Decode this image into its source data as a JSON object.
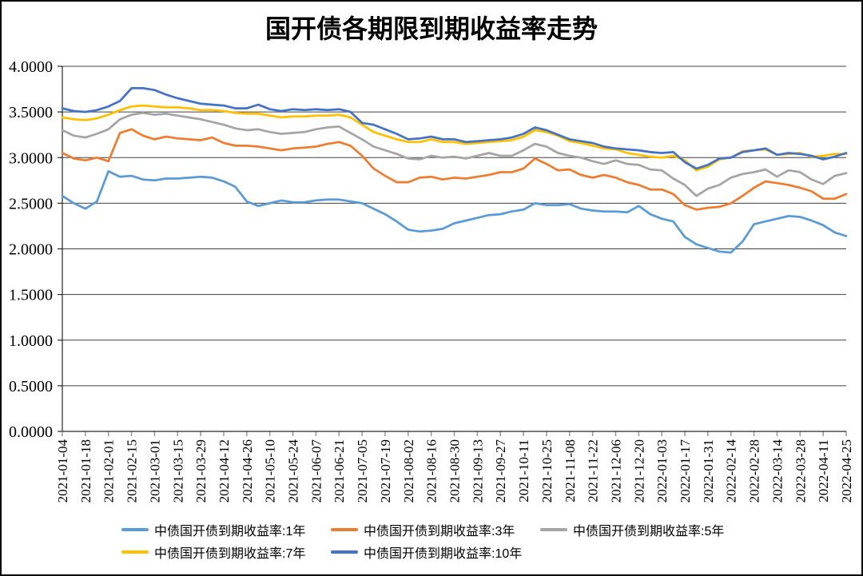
{
  "title": "国开债各期限到期收益率走势",
  "chart_data": {
    "type": "line",
    "title": "国开债各期限到期收益率走势",
    "xlabel": "",
    "ylabel": "",
    "ylim": [
      0,
      4
    ],
    "y_tick_step": 0.5,
    "y_tick_decimals": 4,
    "grid": "horizontal",
    "legend_position": "bottom",
    "axis_color": "#262626",
    "gridline_color": "#404040",
    "x_tick_mark_color": "#999999",
    "points_per_tick": 2,
    "x_tick_labels": [
      "2021-01-04",
      "2021-01-18",
      "2021-02-01",
      "2021-02-15",
      "2021-03-01",
      "2021-03-15",
      "2021-03-29",
      "2021-04-12",
      "2021-04-26",
      "2021-05-10",
      "2021-05-24",
      "2021-06-07",
      "2021-06-21",
      "2021-07-05",
      "2021-07-19",
      "2021-08-02",
      "2021-08-16",
      "2021-08-30",
      "2021-09-13",
      "2021-09-27",
      "2021-10-11",
      "2021-10-25",
      "2021-11-08",
      "2021-11-22",
      "2021-12-06",
      "2021-12-20",
      "2022-01-03",
      "2022-01-17",
      "2022-01-31",
      "2022-02-14",
      "2022-02-28",
      "2022-03-14",
      "2022-03-28",
      "2022-04-11",
      "2022-04-25"
    ],
    "series": [
      {
        "name": "中债国开债到期收益率:1年",
        "color": "#5B9BD5",
        "values": [
          2.58,
          2.5,
          2.44,
          2.52,
          2.85,
          2.79,
          2.8,
          2.76,
          2.75,
          2.77,
          2.77,
          2.78,
          2.79,
          2.78,
          2.74,
          2.68,
          2.52,
          2.47,
          2.5,
          2.53,
          2.51,
          2.51,
          2.53,
          2.54,
          2.54,
          2.52,
          2.5,
          2.44,
          2.38,
          2.3,
          2.21,
          2.19,
          2.2,
          2.22,
          2.28,
          2.31,
          2.34,
          2.37,
          2.38,
          2.41,
          2.43,
          2.5,
          2.48,
          2.48,
          2.49,
          2.44,
          2.42,
          2.41,
          2.41,
          2.4,
          2.47,
          2.38,
          2.33,
          2.3,
          2.13,
          2.05,
          2.01,
          1.97,
          1.96,
          2.08,
          2.27,
          2.3,
          2.33,
          2.36,
          2.35,
          2.31,
          2.26,
          2.18,
          2.14
        ]
      },
      {
        "name": "中债国开债到期收益率:3年",
        "color": "#ED7D31",
        "values": [
          3.05,
          2.99,
          2.97,
          3.0,
          2.96,
          3.27,
          3.31,
          3.24,
          3.2,
          3.23,
          3.21,
          3.2,
          3.19,
          3.22,
          3.16,
          3.13,
          3.13,
          3.12,
          3.1,
          3.08,
          3.1,
          3.11,
          3.12,
          3.15,
          3.17,
          3.13,
          3.02,
          2.88,
          2.8,
          2.73,
          2.73,
          2.78,
          2.79,
          2.76,
          2.78,
          2.77,
          2.79,
          2.81,
          2.84,
          2.84,
          2.88,
          2.99,
          2.93,
          2.86,
          2.87,
          2.81,
          2.78,
          2.81,
          2.78,
          2.73,
          2.7,
          2.65,
          2.65,
          2.6,
          2.48,
          2.43,
          2.45,
          2.46,
          2.5,
          2.58,
          2.67,
          2.74,
          2.72,
          2.7,
          2.67,
          2.63,
          2.55,
          2.55,
          2.6
        ]
      },
      {
        "name": "中债国开债到期收益率:5年",
        "color": "#A5A5A5",
        "values": [
          3.3,
          3.24,
          3.22,
          3.26,
          3.31,
          3.42,
          3.47,
          3.49,
          3.47,
          3.48,
          3.46,
          3.44,
          3.42,
          3.39,
          3.36,
          3.32,
          3.3,
          3.31,
          3.28,
          3.26,
          3.27,
          3.28,
          3.31,
          3.33,
          3.34,
          3.27,
          3.2,
          3.12,
          3.08,
          3.04,
          2.99,
          2.98,
          3.02,
          3.0,
          3.01,
          2.99,
          3.02,
          3.05,
          3.02,
          3.02,
          3.08,
          3.15,
          3.12,
          3.05,
          3.02,
          3.0,
          2.96,
          2.93,
          2.97,
          2.93,
          2.92,
          2.87,
          2.86,
          2.77,
          2.7,
          2.58,
          2.66,
          2.7,
          2.78,
          2.82,
          2.84,
          2.87,
          2.79,
          2.86,
          2.84,
          2.76,
          2.71,
          2.8,
          2.83
        ]
      },
      {
        "name": "中债国开债到期收益率:7年",
        "color": "#FFC000",
        "values": [
          3.44,
          3.42,
          3.41,
          3.43,
          3.47,
          3.52,
          3.56,
          3.57,
          3.56,
          3.55,
          3.55,
          3.54,
          3.52,
          3.52,
          3.51,
          3.49,
          3.48,
          3.48,
          3.46,
          3.44,
          3.45,
          3.45,
          3.46,
          3.46,
          3.47,
          3.44,
          3.36,
          3.28,
          3.24,
          3.2,
          3.17,
          3.17,
          3.2,
          3.17,
          3.17,
          3.15,
          3.16,
          3.17,
          3.18,
          3.19,
          3.23,
          3.3,
          3.28,
          3.24,
          3.18,
          3.16,
          3.13,
          3.1,
          3.09,
          3.05,
          3.03,
          3.01,
          3.0,
          3.02,
          2.97,
          2.86,
          2.9,
          2.98,
          3.0,
          3.07,
          3.08,
          3.09,
          3.03,
          3.04,
          3.05,
          3.01,
          3.02,
          3.04,
          3.04
        ]
      },
      {
        "name": "中债国开债到期收益率:10年",
        "color": "#4472C4",
        "values": [
          3.54,
          3.51,
          3.5,
          3.52,
          3.56,
          3.62,
          3.76,
          3.76,
          3.74,
          3.69,
          3.65,
          3.62,
          3.59,
          3.58,
          3.57,
          3.54,
          3.54,
          3.58,
          3.53,
          3.51,
          3.53,
          3.52,
          3.53,
          3.52,
          3.53,
          3.5,
          3.38,
          3.36,
          3.31,
          3.26,
          3.2,
          3.21,
          3.23,
          3.2,
          3.2,
          3.17,
          3.18,
          3.19,
          3.2,
          3.22,
          3.26,
          3.33,
          3.3,
          3.25,
          3.2,
          3.18,
          3.16,
          3.12,
          3.1,
          3.09,
          3.08,
          3.06,
          3.05,
          3.06,
          2.95,
          2.88,
          2.92,
          2.99,
          3.0,
          3.06,
          3.08,
          3.1,
          3.03,
          3.05,
          3.04,
          3.02,
          2.98,
          3.01,
          3.05
        ]
      }
    ]
  }
}
